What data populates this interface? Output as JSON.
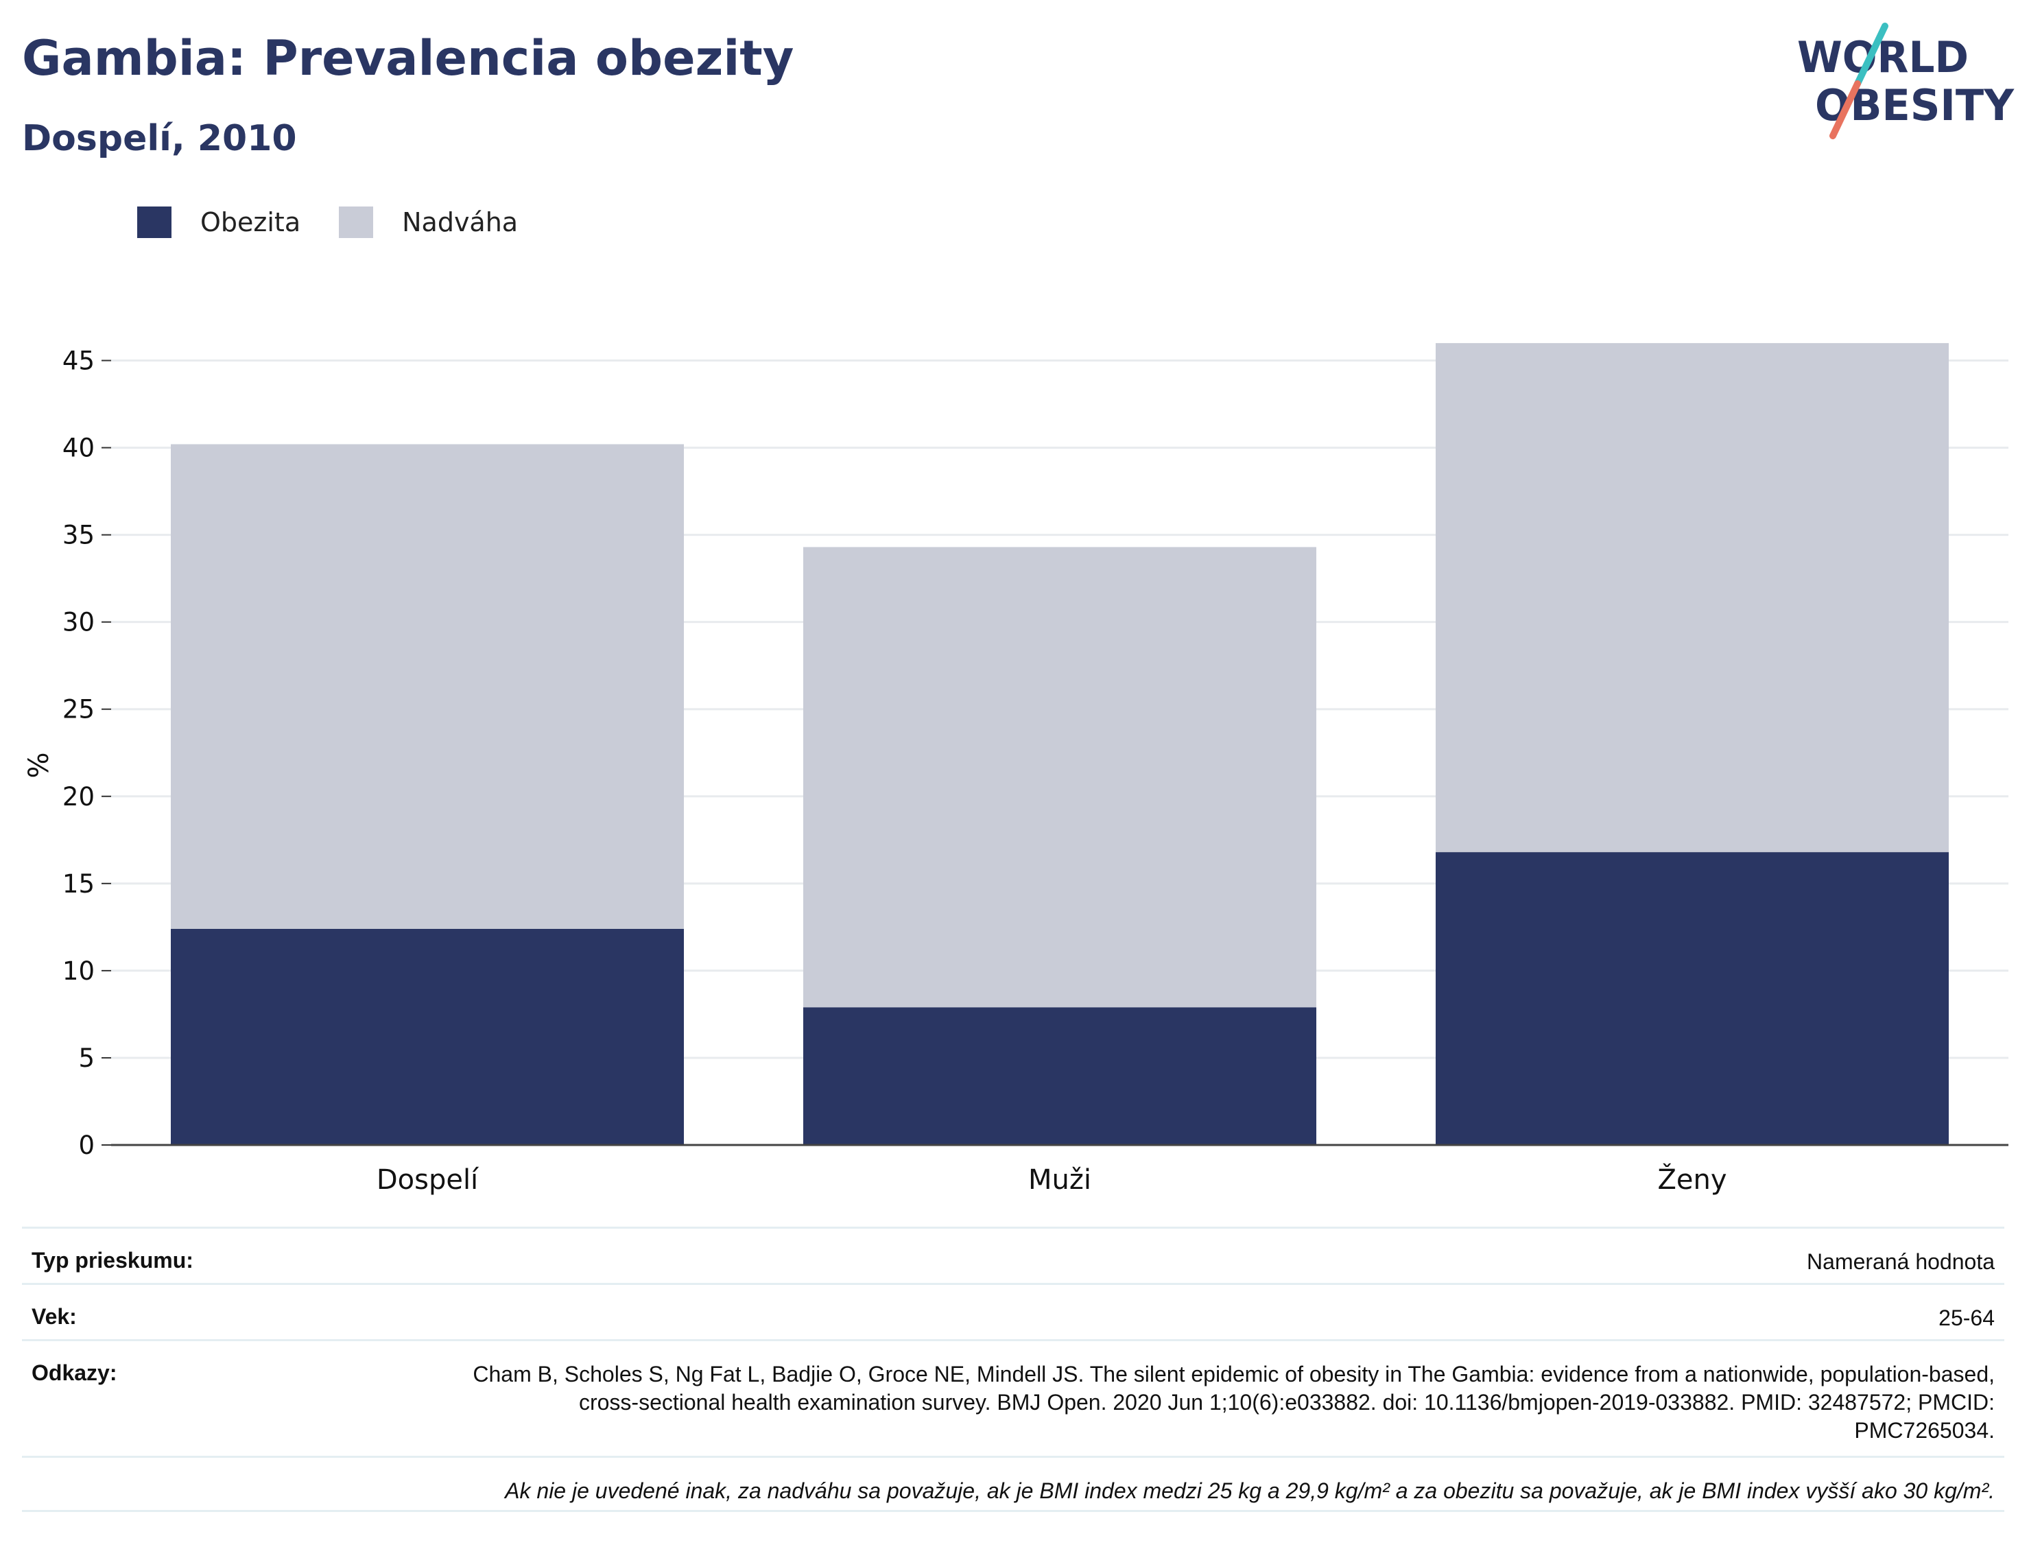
{
  "header": {
    "title": "Gambia: Prevalencia obezity",
    "subtitle": "Dospelí, 2010"
  },
  "logo": {
    "line1": "WORLD",
    "line2": "OBESITY",
    "colors": {
      "text": "#2a3663",
      "slash_top": "#3bbfc1",
      "slash_bottom": "#e8735f"
    }
  },
  "legend": {
    "items": [
      {
        "label": "Obezita",
        "color": "#2a3663"
      },
      {
        "label": "Nadváha",
        "color": "#c9ccd7"
      }
    ]
  },
  "chart_data": {
    "type": "bar",
    "stacked": true,
    "categories": [
      "Dospelí",
      "Muži",
      "Ženy"
    ],
    "series": [
      {
        "name": "Obezita",
        "values": [
          12.4,
          7.9,
          16.8
        ],
        "color": "#2a3663"
      },
      {
        "name": "Nadváha",
        "values": [
          27.8,
          26.4,
          29.2
        ],
        "color": "#c9ccd7"
      }
    ],
    "ylabel": "%",
    "ylim": [
      0,
      47.5
    ],
    "yticks": [
      0,
      5,
      10,
      15,
      20,
      25,
      30,
      35,
      40,
      45
    ],
    "grid": true,
    "legend_position": "top-left"
  },
  "meta": {
    "survey_type": {
      "label": "Typ prieskumu:",
      "value": "Nameraná hodnota"
    },
    "age": {
      "label": "Vek:",
      "value": "25-64"
    },
    "references": {
      "label": "Odkazy:",
      "value": "Cham B, Scholes S, Ng Fat L, Badjie O, Groce NE, Mindell JS. The silent epidemic of obesity in The Gambia: evidence from a nationwide, population-based, cross-sectional health examination survey. BMJ Open. 2020 Jun 1;10(6):e033882. doi: 10.1136/bmjopen-2019-033882. PMID: 32487572; PMCID: PMC7265034."
    },
    "note": "Ak nie je uvedené inak, za nadváhu sa považuje, ak je BMI index medzi 25 kg a 29,9 kg/m² a za obezitu sa považuje, ak je BMI index vyšší ako 30 kg/m²."
  }
}
